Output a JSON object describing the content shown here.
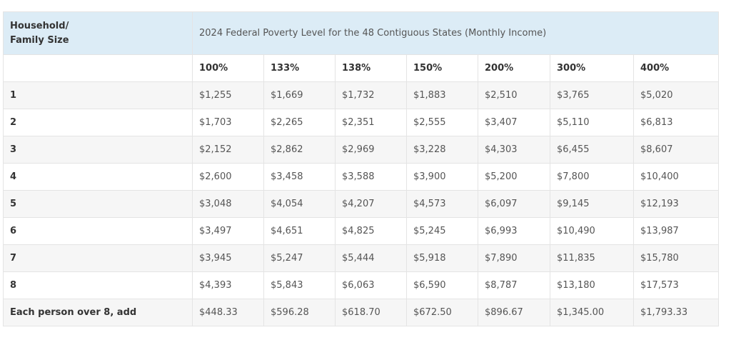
{
  "table": {
    "corner_header_line1": "Household/",
    "corner_header_line2": "Family Size",
    "caption": "2024 Federal Poverty Level for the 48 Contiguous States (Monthly Income)",
    "percent_headers": [
      "100%",
      "133%",
      "138%",
      "150%",
      "200%",
      "300%",
      "400%"
    ],
    "rows": [
      {
        "size": "1",
        "values": [
          "$1,255",
          "$1,669",
          "$1,732",
          "$1,883",
          "$2,510",
          "$3,765",
          "$5,020"
        ]
      },
      {
        "size": "2",
        "values": [
          "$1,703",
          "$2,265",
          "$2,351",
          "$2,555",
          "$3,407",
          "$5,110",
          "$6,813"
        ]
      },
      {
        "size": "3",
        "values": [
          "$2,152",
          "$2,862",
          "$2,969",
          "$3,228",
          "$4,303",
          "$6,455",
          "$8,607"
        ]
      },
      {
        "size": "4",
        "values": [
          "$2,600",
          "$3,458",
          "$3,588",
          "$3,900",
          "$5,200",
          "$7,800",
          "$10,400"
        ]
      },
      {
        "size": "5",
        "values": [
          "$3,048",
          "$4,054",
          "$4,207",
          "$4,573",
          "$6,097",
          "$9,145",
          "$12,193"
        ]
      },
      {
        "size": "6",
        "values": [
          "$3,497",
          "$4,651",
          "$4,825",
          "$5,245",
          "$6,993",
          "$10,490",
          "$13,987"
        ]
      },
      {
        "size": "7",
        "values": [
          "$3,945",
          "$5,247",
          "$5,444",
          "$5,918",
          "$7,890",
          "$11,835",
          "$15,780"
        ]
      },
      {
        "size": "8",
        "values": [
          "$4,393",
          "$5,843",
          "$6,063",
          "$6,590",
          "$8,787",
          "$13,180",
          "$17,573"
        ]
      },
      {
        "size": "Each person over 8, add",
        "values": [
          "$448.33",
          "$596.28",
          "$618.70",
          "$672.50",
          "$896.67",
          "$1,345.00",
          "$1,793.33"
        ]
      }
    ]
  },
  "colors": {
    "header_background": "#dcecf6",
    "stripe_background": "#f6f6f6",
    "border": "#e4e4e4"
  }
}
